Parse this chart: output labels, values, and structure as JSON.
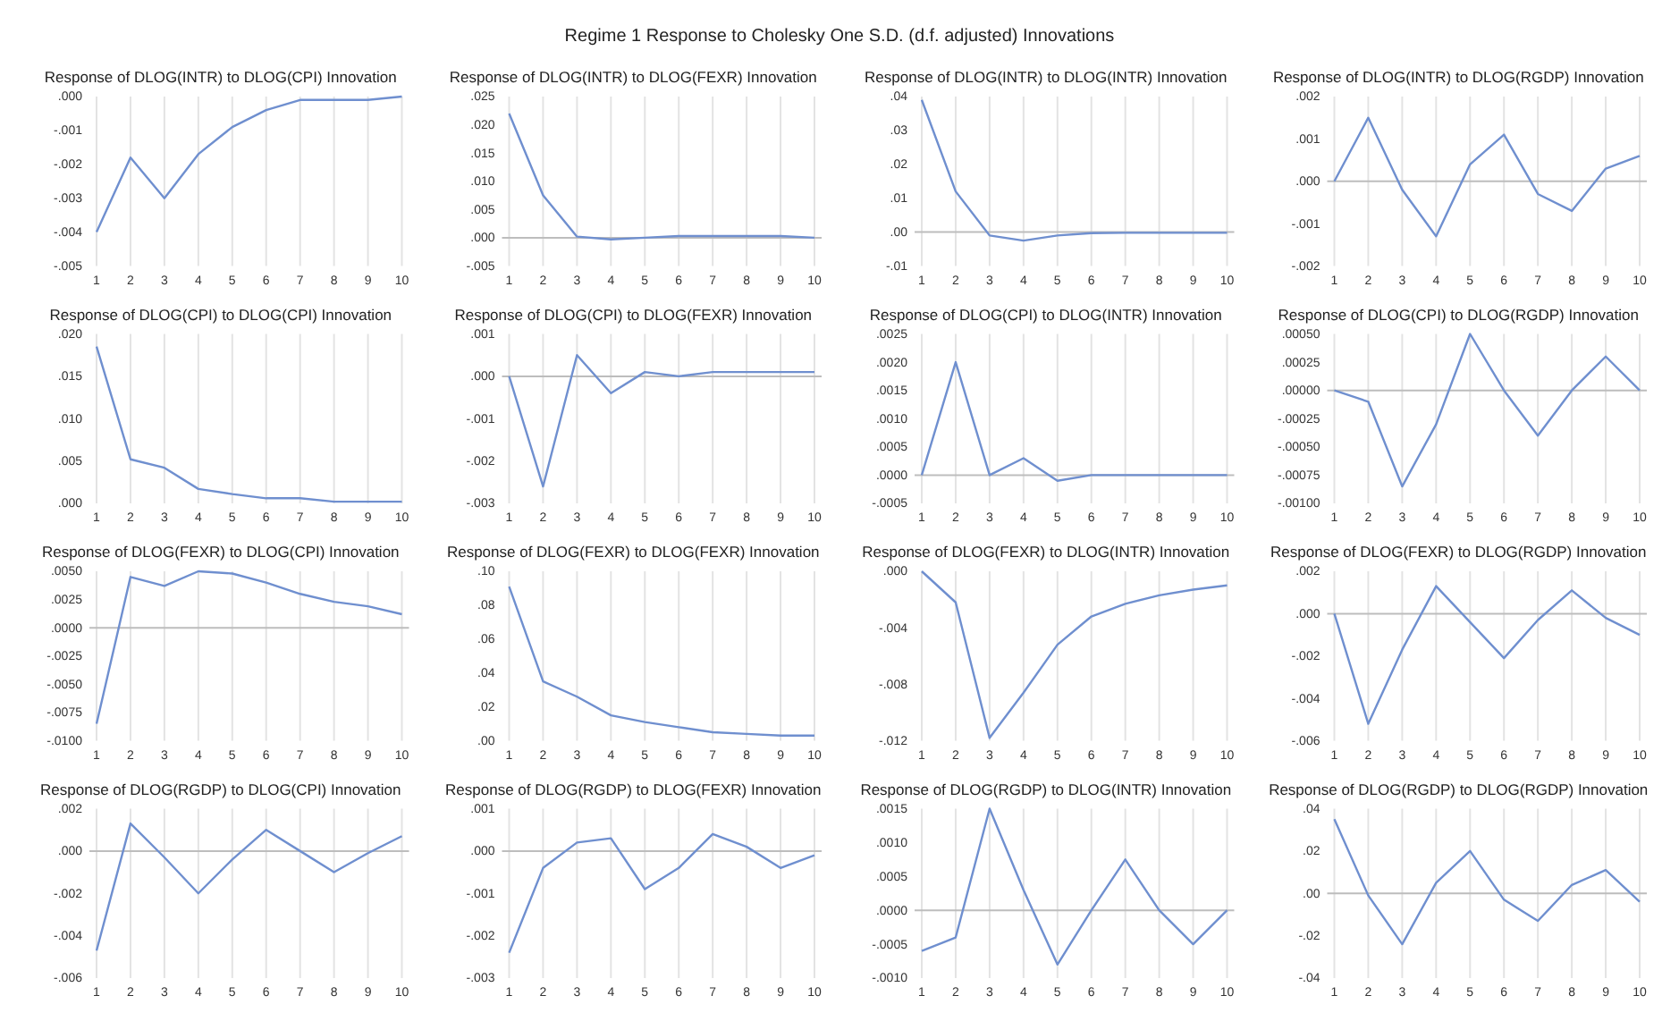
{
  "chart_data": [
    {
      "type": "other",
      "title": "Regime 1 Response to Cholesky One S.D. (d.f. adjusted) Innovations"
    },
    {
      "type": "line",
      "title": "Response of DLOG(INTR) to DLOG(CPI) Innovation",
      "categories": [
        "1",
        "2",
        "3",
        "4",
        "5",
        "6",
        "7",
        "8",
        "9",
        "10"
      ],
      "series": [
        {
          "color": "#6f8fcf",
          "values": [
            -0.004,
            -0.0018,
            -0.003,
            -0.0017,
            -0.0009,
            -0.0004,
            -0.0001,
            -0.0001,
            -0.0001,
            0.0
          ]
        }
      ],
      "ylim": [
        -0.005,
        0
      ],
      "yticks": [
        {
          "value": -0.005,
          "label": "-.005"
        },
        {
          "value": -0.004,
          "label": "-.004"
        },
        {
          "value": -0.003,
          "label": "-.003"
        },
        {
          "value": -0.002,
          "label": "-.002"
        },
        {
          "value": -0.001,
          "label": "-.001"
        },
        {
          "value": 0,
          "label": ".000"
        }
      ],
      "grid": "x"
    },
    {
      "type": "line",
      "title": "Response of DLOG(INTR) to DLOG(FEXR) Innovation",
      "categories": [
        "1",
        "2",
        "3",
        "4",
        "5",
        "6",
        "7",
        "8",
        "9",
        "10"
      ],
      "series": [
        {
          "color": "#6f8fcf",
          "values": [
            0.022,
            0.0075,
            0.0002,
            -0.0003,
            0.0,
            0.0003,
            0.0003,
            0.0003,
            0.0003,
            0.0
          ]
        }
      ],
      "ylim": [
        -0.005,
        0.025
      ],
      "yticks": [
        {
          "value": -0.005,
          "label": "-.005"
        },
        {
          "value": 0,
          "label": ".000"
        },
        {
          "value": 0.005,
          "label": ".005"
        },
        {
          "value": 0.01,
          "label": ".010"
        },
        {
          "value": 0.015,
          "label": ".015"
        },
        {
          "value": 0.02,
          "label": ".020"
        },
        {
          "value": 0.025,
          "label": ".025"
        }
      ],
      "grid": "x",
      "ref_lines": [
        {
          "axis": "y",
          "value": 0
        }
      ]
    },
    {
      "type": "line",
      "title": "Response of DLOG(INTR) to DLOG(INTR) Innovation",
      "categories": [
        "1",
        "2",
        "3",
        "4",
        "5",
        "6",
        "7",
        "8",
        "9",
        "10"
      ],
      "series": [
        {
          "color": "#6f8fcf",
          "values": [
            0.039,
            0.012,
            -0.001,
            -0.0025,
            -0.001,
            -0.0003,
            -0.0002,
            -0.0002,
            -0.0002,
            -0.0002
          ]
        }
      ],
      "ylim": [
        -0.01,
        0.04
      ],
      "yticks": [
        {
          "value": -0.01,
          "label": "-.01"
        },
        {
          "value": 0,
          "label": ".00"
        },
        {
          "value": 0.01,
          "label": ".01"
        },
        {
          "value": 0.02,
          "label": ".02"
        },
        {
          "value": 0.03,
          "label": ".03"
        },
        {
          "value": 0.04,
          "label": ".04"
        }
      ],
      "grid": "x",
      "ref_lines": [
        {
          "axis": "y",
          "value": 0
        }
      ]
    },
    {
      "type": "line",
      "title": "Response of DLOG(INTR) to DLOG(RGDP) Innovation",
      "categories": [
        "1",
        "2",
        "3",
        "4",
        "5",
        "6",
        "7",
        "8",
        "9",
        "10"
      ],
      "series": [
        {
          "color": "#6f8fcf",
          "values": [
            0.0,
            0.0015,
            -0.0002,
            -0.0013,
            0.0004,
            0.0011,
            -0.0003,
            -0.0007,
            0.0003,
            0.0006
          ]
        }
      ],
      "ylim": [
        -0.002,
        0.002
      ],
      "yticks": [
        {
          "value": -0.002,
          "label": "-.002"
        },
        {
          "value": -0.001,
          "label": "-.001"
        },
        {
          "value": 0,
          "label": ".000"
        },
        {
          "value": 0.001,
          "label": ".001"
        },
        {
          "value": 0.002,
          "label": ".002"
        }
      ],
      "grid": "x",
      "ref_lines": [
        {
          "axis": "y",
          "value": 0
        }
      ]
    },
    {
      "type": "line",
      "title": "Response of DLOG(CPI) to DLOG(CPI) Innovation",
      "categories": [
        "1",
        "2",
        "3",
        "4",
        "5",
        "6",
        "7",
        "8",
        "9",
        "10"
      ],
      "series": [
        {
          "color": "#6f8fcf",
          "values": [
            0.0185,
            0.0052,
            0.0042,
            0.0017,
            0.0011,
            0.0006,
            0.0006,
            0.0002,
            0.0002,
            0.0002
          ]
        }
      ],
      "ylim": [
        0,
        0.02
      ],
      "yticks": [
        {
          "value": 0,
          "label": ".000"
        },
        {
          "value": 0.005,
          "label": ".005"
        },
        {
          "value": 0.01,
          "label": ".010"
        },
        {
          "value": 0.015,
          "label": ".015"
        },
        {
          "value": 0.02,
          "label": ".020"
        }
      ],
      "grid": "x"
    },
    {
      "type": "line",
      "title": "Response of DLOG(CPI) to DLOG(FEXR) Innovation",
      "categories": [
        "1",
        "2",
        "3",
        "4",
        "5",
        "6",
        "7",
        "8",
        "9",
        "10"
      ],
      "series": [
        {
          "color": "#6f8fcf",
          "values": [
            0.0,
            -0.0026,
            0.0005,
            -0.0004,
            0.0001,
            0.0,
            0.0001,
            0.0001,
            0.0001,
            0.0001
          ]
        }
      ],
      "ylim": [
        -0.003,
        0.001
      ],
      "yticks": [
        {
          "value": -0.003,
          "label": "-.003"
        },
        {
          "value": -0.002,
          "label": "-.002"
        },
        {
          "value": -0.001,
          "label": "-.001"
        },
        {
          "value": 0,
          "label": ".000"
        },
        {
          "value": 0.001,
          "label": ".001"
        }
      ],
      "grid": "x",
      "ref_lines": [
        {
          "axis": "y",
          "value": 0
        }
      ]
    },
    {
      "type": "line",
      "title": "Response of DLOG(CPI) to DLOG(INTR) Innovation",
      "categories": [
        "1",
        "2",
        "3",
        "4",
        "5",
        "6",
        "7",
        "8",
        "9",
        "10"
      ],
      "series": [
        {
          "color": "#6f8fcf",
          "values": [
            0.0,
            0.002,
            0.0,
            0.0003,
            -0.0001,
            0.0,
            0.0,
            0.0,
            0.0,
            0.0
          ]
        }
      ],
      "ylim": [
        -0.0005,
        0.0025
      ],
      "yticks": [
        {
          "value": -0.0005,
          "label": "-.0005"
        },
        {
          "value": 0,
          "label": ".0000"
        },
        {
          "value": 0.0005,
          "label": ".0005"
        },
        {
          "value": 0.001,
          "label": ".0010"
        },
        {
          "value": 0.0015,
          "label": ".0015"
        },
        {
          "value": 0.002,
          "label": ".0020"
        },
        {
          "value": 0.0025,
          "label": ".0025"
        }
      ],
      "grid": "x",
      "ref_lines": [
        {
          "axis": "y",
          "value": 0
        }
      ]
    },
    {
      "type": "line",
      "title": "Response of DLOG(CPI) to DLOG(RGDP) Innovation",
      "categories": [
        "1",
        "2",
        "3",
        "4",
        "5",
        "6",
        "7",
        "8",
        "9",
        "10"
      ],
      "series": [
        {
          "color": "#6f8fcf",
          "values": [
            0.0,
            -0.0001,
            -0.00085,
            -0.0003,
            0.0005,
            0.0,
            -0.0004,
            0.0,
            0.0003,
            0.0
          ]
        }
      ],
      "ylim": [
        -0.001,
        0.0005
      ],
      "yticks": [
        {
          "value": -0.001,
          "label": "-.00100"
        },
        {
          "value": -0.00075,
          "label": "-.00075"
        },
        {
          "value": -0.0005,
          "label": "-.00050"
        },
        {
          "value": -0.00025,
          "label": "-.00025"
        },
        {
          "value": 0,
          "label": ".00000"
        },
        {
          "value": 0.00025,
          "label": ".00025"
        },
        {
          "value": 0.0005,
          "label": ".00050"
        }
      ],
      "grid": "x",
      "ref_lines": [
        {
          "axis": "y",
          "value": 0
        }
      ]
    },
    {
      "type": "line",
      "title": "Response of DLOG(FEXR) to DLOG(CPI) Innovation",
      "categories": [
        "1",
        "2",
        "3",
        "4",
        "5",
        "6",
        "7",
        "8",
        "9",
        "10"
      ],
      "series": [
        {
          "color": "#6f8fcf",
          "values": [
            -0.0085,
            0.0045,
            0.0037,
            0.005,
            0.0048,
            0.004,
            0.003,
            0.0023,
            0.0019,
            0.0012
          ]
        }
      ],
      "ylim": [
        -0.01,
        0.005
      ],
      "yticks": [
        {
          "value": -0.01,
          "label": "-.0100"
        },
        {
          "value": -0.0075,
          "label": "-.0075"
        },
        {
          "value": -0.005,
          "label": "-.0050"
        },
        {
          "value": -0.0025,
          "label": "-.0025"
        },
        {
          "value": 0,
          "label": ".0000"
        },
        {
          "value": 0.0025,
          "label": ".0025"
        },
        {
          "value": 0.005,
          "label": ".0050"
        }
      ],
      "grid": "x",
      "ref_lines": [
        {
          "axis": "y",
          "value": 0
        }
      ]
    },
    {
      "type": "line",
      "title": "Response of DLOG(FEXR) to DLOG(FEXR) Innovation",
      "categories": [
        "1",
        "2",
        "3",
        "4",
        "5",
        "6",
        "7",
        "8",
        "9",
        "10"
      ],
      "series": [
        {
          "color": "#6f8fcf",
          "values": [
            0.091,
            0.035,
            0.026,
            0.015,
            0.011,
            0.008,
            0.005,
            0.004,
            0.003,
            0.003
          ]
        }
      ],
      "ylim": [
        0,
        0.1
      ],
      "yticks": [
        {
          "value": 0,
          "label": ".00"
        },
        {
          "value": 0.02,
          "label": ".02"
        },
        {
          "value": 0.04,
          "label": ".04"
        },
        {
          "value": 0.06,
          "label": ".06"
        },
        {
          "value": 0.08,
          "label": ".08"
        },
        {
          "value": 0.1,
          "label": ".10"
        }
      ],
      "grid": "x"
    },
    {
      "type": "line",
      "title": "Response of DLOG(FEXR) to DLOG(INTR) Innovation",
      "categories": [
        "1",
        "2",
        "3",
        "4",
        "5",
        "6",
        "7",
        "8",
        "9",
        "10"
      ],
      "series": [
        {
          "color": "#6f8fcf",
          "values": [
            0.0,
            -0.0022,
            -0.0118,
            -0.0086,
            -0.0052,
            -0.0032,
            -0.0023,
            -0.0017,
            -0.0013,
            -0.001
          ]
        }
      ],
      "ylim": [
        -0.012,
        0
      ],
      "yticks": [
        {
          "value": -0.012,
          "label": "-.012"
        },
        {
          "value": -0.008,
          "label": "-.008"
        },
        {
          "value": -0.004,
          "label": "-.004"
        },
        {
          "value": 0,
          "label": ".000"
        }
      ],
      "grid": "x"
    },
    {
      "type": "line",
      "title": "Response of DLOG(FEXR) to DLOG(RGDP) Innovation",
      "categories": [
        "1",
        "2",
        "3",
        "4",
        "5",
        "6",
        "7",
        "8",
        "9",
        "10"
      ],
      "series": [
        {
          "color": "#6f8fcf",
          "values": [
            0.0,
            -0.0052,
            -0.0017,
            0.0013,
            -0.0004,
            -0.0021,
            -0.0003,
            0.0011,
            -0.0002,
            -0.001
          ]
        }
      ],
      "ylim": [
        -0.006,
        0.002
      ],
      "yticks": [
        {
          "value": -0.006,
          "label": "-.006"
        },
        {
          "value": -0.004,
          "label": "-.004"
        },
        {
          "value": -0.002,
          "label": "-.002"
        },
        {
          "value": 0,
          "label": ".000"
        },
        {
          "value": 0.002,
          "label": ".002"
        }
      ],
      "grid": "x",
      "ref_lines": [
        {
          "axis": "y",
          "value": 0
        }
      ]
    },
    {
      "type": "line",
      "title": "Response of DLOG(RGDP) to DLOG(CPI) Innovation",
      "categories": [
        "1",
        "2",
        "3",
        "4",
        "5",
        "6",
        "7",
        "8",
        "9",
        "10"
      ],
      "series": [
        {
          "color": "#6f8fcf",
          "values": [
            -0.0047,
            0.0013,
            -0.0003,
            -0.002,
            -0.0004,
            0.001,
            0.0,
            -0.001,
            -0.0001,
            0.0007
          ]
        }
      ],
      "ylim": [
        -0.006,
        0.002
      ],
      "yticks": [
        {
          "value": -0.006,
          "label": "-.006"
        },
        {
          "value": -0.004,
          "label": "-.004"
        },
        {
          "value": -0.002,
          "label": "-.002"
        },
        {
          "value": 0,
          "label": ".000"
        },
        {
          "value": 0.002,
          "label": ".002"
        }
      ],
      "grid": "x",
      "ref_lines": [
        {
          "axis": "y",
          "value": 0
        }
      ]
    },
    {
      "type": "line",
      "title": "Response of DLOG(RGDP) to DLOG(FEXR) Innovation",
      "categories": [
        "1",
        "2",
        "3",
        "4",
        "5",
        "6",
        "7",
        "8",
        "9",
        "10"
      ],
      "series": [
        {
          "color": "#6f8fcf",
          "values": [
            -0.0024,
            -0.0004,
            0.0002,
            0.0003,
            -0.0009,
            -0.0004,
            0.0004,
            0.0001,
            -0.0004,
            -0.0001
          ]
        }
      ],
      "ylim": [
        -0.003,
        0.001
      ],
      "yticks": [
        {
          "value": -0.003,
          "label": "-.003"
        },
        {
          "value": -0.002,
          "label": "-.002"
        },
        {
          "value": -0.001,
          "label": "-.001"
        },
        {
          "value": 0,
          "label": ".000"
        },
        {
          "value": 0.001,
          "label": ".001"
        }
      ],
      "grid": "x",
      "ref_lines": [
        {
          "axis": "y",
          "value": 0
        }
      ]
    },
    {
      "type": "line",
      "title": "Response of DLOG(RGDP) to DLOG(INTR) Innovation",
      "categories": [
        "1",
        "2",
        "3",
        "4",
        "5",
        "6",
        "7",
        "8",
        "9",
        "10"
      ],
      "series": [
        {
          "color": "#6f8fcf",
          "values": [
            -0.0006,
            -0.0004,
            0.0015,
            0.0003,
            -0.0008,
            0.0,
            0.00075,
            0.0,
            -0.0005,
            0.0
          ]
        }
      ],
      "ylim": [
        -0.001,
        0.0015
      ],
      "yticks": [
        {
          "value": -0.001,
          "label": "-.0010"
        },
        {
          "value": -0.0005,
          "label": "-.0005"
        },
        {
          "value": 0,
          "label": ".0000"
        },
        {
          "value": 0.0005,
          "label": ".0005"
        },
        {
          "value": 0.001,
          "label": ".0010"
        },
        {
          "value": 0.0015,
          "label": ".0015"
        }
      ],
      "grid": "x",
      "ref_lines": [
        {
          "axis": "y",
          "value": 0
        }
      ]
    },
    {
      "type": "line",
      "title": "Response of DLOG(RGDP) to DLOG(RGDP) Innovation",
      "categories": [
        "1",
        "2",
        "3",
        "4",
        "5",
        "6",
        "7",
        "8",
        "9",
        "10"
      ],
      "series": [
        {
          "color": "#6f8fcf",
          "values": [
            0.035,
            -0.001,
            -0.024,
            0.005,
            0.02,
            -0.003,
            -0.013,
            0.004,
            0.011,
            -0.004
          ]
        }
      ],
      "ylim": [
        -0.04,
        0.04
      ],
      "yticks": [
        {
          "value": -0.04,
          "label": "-.04"
        },
        {
          "value": -0.02,
          "label": "-.02"
        },
        {
          "value": 0,
          "label": ".00"
        },
        {
          "value": 0.02,
          "label": ".02"
        },
        {
          "value": 0.04,
          "label": ".04"
        }
      ],
      "grid": "x",
      "ref_lines": [
        {
          "axis": "y",
          "value": 0
        }
      ]
    }
  ]
}
